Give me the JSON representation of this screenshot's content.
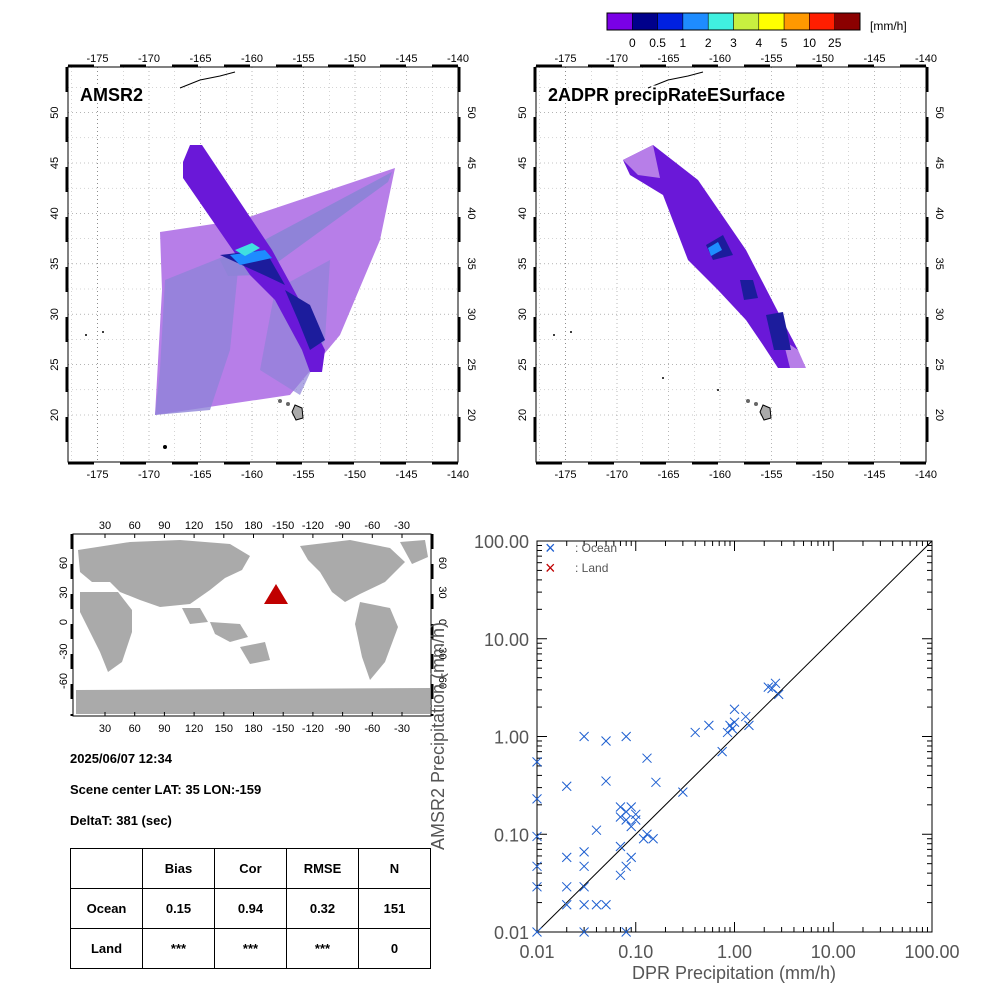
{
  "colorbar": {
    "unit": "[mm/h]",
    "colors": [
      "#7a00e6",
      "#00008b",
      "#0020e0",
      "#1e8cff",
      "#40f0e0",
      "#c8f040",
      "#ffff00",
      "#ff9900",
      "#ff1e00",
      "#8b0000"
    ],
    "labels": [
      "0",
      "0.5",
      "1",
      "2",
      "3",
      "4",
      "5",
      "10",
      "25"
    ]
  },
  "maps": {
    "amsr2_title": "AMSR2",
    "dpr_title": "2ADPR precipRateESurface",
    "lon_ticks": [
      "-175",
      "-170",
      "-165",
      "-160",
      "-155",
      "-150",
      "-145",
      "-140"
    ],
    "lat_ticks": [
      "20",
      "25",
      "30",
      "35",
      "40",
      "45",
      "50"
    ]
  },
  "globe": {
    "lon_ticks_top": [
      "30",
      "60",
      "90",
      "120",
      "150",
      "180",
      "-150",
      "-120",
      "-90",
      "-60",
      "-30"
    ],
    "lon_ticks_bottom": [
      "30",
      "60",
      "90",
      "120",
      "150",
      "180",
      "-150",
      "-120",
      "-90",
      "-60",
      "-30"
    ],
    "lat_ticks": [
      "60",
      "30",
      "0",
      "-30",
      "-60"
    ],
    "marker_color": "#c00000"
  },
  "info": {
    "datetime": "2025/06/07 12:34",
    "scene_center": "Scene center LAT: 35   LON:-159",
    "delta_t": "DeltaT:  381 (sec)"
  },
  "stats": {
    "headers": [
      "",
      "Bias",
      "Cor",
      "RMSE",
      "N"
    ],
    "rows": [
      [
        "Ocean",
        "0.15",
        "0.94",
        "0.32",
        "151"
      ],
      [
        "Land",
        "***",
        "***",
        "***",
        "0"
      ]
    ]
  },
  "chart_data": {
    "type": "scatter",
    "xlabel": "DPR Precipitation (mm/h)",
    "ylabel": "AMSR2 Precipitation (mm/h)",
    "xscale": "log",
    "yscale": "log",
    "xlim": [
      0.01,
      100
    ],
    "ylim": [
      0.01,
      100
    ],
    "x_ticks": [
      "0.01",
      "0.10",
      "1.00",
      "10.00",
      "100.00"
    ],
    "y_ticks": [
      "0.01",
      "0.10",
      "1.00",
      "10.00",
      "100.00"
    ],
    "legend": {
      "position": "top-left",
      "entries": [
        ": Ocean",
        ": Land"
      ]
    },
    "grid": false,
    "series": [
      {
        "name": ": Ocean",
        "color": "#1e5fd0",
        "points": [
          [
            0.01,
            0.01
          ],
          [
            0.01,
            0.029
          ],
          [
            0.01,
            0.047
          ],
          [
            0.01,
            0.095
          ],
          [
            0.01,
            0.23
          ],
          [
            0.01,
            0.55
          ],
          [
            0.02,
            0.019
          ],
          [
            0.02,
            0.029
          ],
          [
            0.02,
            0.058
          ],
          [
            0.02,
            0.31
          ],
          [
            0.03,
            0.01
          ],
          [
            0.03,
            0.019
          ],
          [
            0.03,
            0.029
          ],
          [
            0.03,
            0.047
          ],
          [
            0.03,
            0.066
          ],
          [
            0.03,
            1.0
          ],
          [
            0.04,
            0.019
          ],
          [
            0.04,
            0.11
          ],
          [
            0.05,
            0.019
          ],
          [
            0.05,
            0.35
          ],
          [
            0.05,
            0.9
          ],
          [
            0.07,
            0.038
          ],
          [
            0.07,
            0.075
          ],
          [
            0.07,
            0.15
          ],
          [
            0.07,
            0.19
          ],
          [
            0.08,
            0.047
          ],
          [
            0.08,
            0.17
          ],
          [
            0.08,
            0.14
          ],
          [
            0.08,
            0.01
          ],
          [
            0.08,
            1.0
          ],
          [
            0.09,
            0.058
          ],
          [
            0.09,
            0.12
          ],
          [
            0.09,
            0.19
          ],
          [
            0.1,
            0.16
          ],
          [
            0.1,
            0.14
          ],
          [
            0.12,
            0.09
          ],
          [
            0.13,
            0.1
          ],
          [
            0.13,
            0.6
          ],
          [
            0.15,
            0.09
          ],
          [
            0.16,
            0.34
          ],
          [
            0.3,
            0.27
          ],
          [
            0.4,
            1.1
          ],
          [
            0.55,
            1.3
          ],
          [
            0.75,
            0.7
          ],
          [
            0.85,
            1.1
          ],
          [
            0.9,
            1.3
          ],
          [
            0.95,
            1.2
          ],
          [
            1.0,
            1.9
          ],
          [
            1.0,
            1.4
          ],
          [
            1.3,
            1.6
          ],
          [
            1.4,
            1.3
          ],
          [
            2.2,
            3.2
          ],
          [
            2.4,
            3.1
          ],
          [
            2.6,
            3.5
          ],
          [
            2.8,
            2.7
          ]
        ]
      },
      {
        "name": ": Land",
        "color": "#c00000",
        "points": []
      }
    ]
  }
}
